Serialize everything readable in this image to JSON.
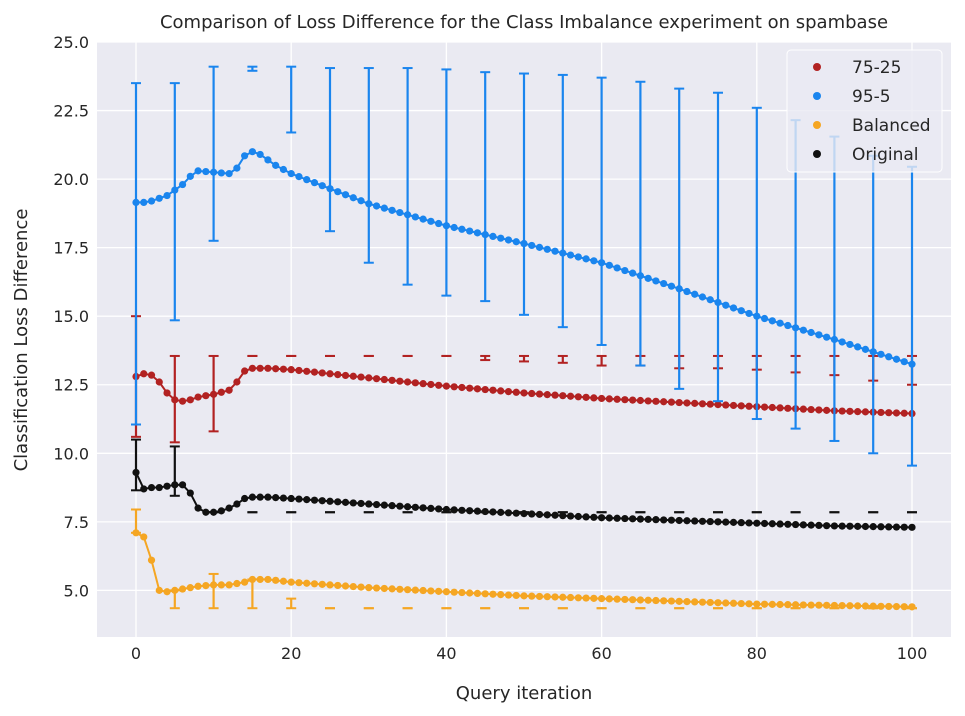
{
  "chart_data": {
    "type": "line",
    "title": "Comparison of Loss Difference for the Class Imbalance experiment on spambase",
    "xlabel": "Query iteration",
    "ylabel": "Classification Loss Difference",
    "xlim": [
      -5,
      105
    ],
    "ylim": [
      3.3,
      25.0
    ],
    "xticks": [
      0,
      20,
      40,
      60,
      80,
      100
    ],
    "xtick_labels": [
      "0",
      "20",
      "40",
      "60",
      "80",
      "100"
    ],
    "yticks": [
      5.0,
      7.5,
      10.0,
      12.5,
      15.0,
      17.5,
      20.0,
      22.5,
      25.0
    ],
    "ytick_labels": [
      "5.0",
      "7.5",
      "10.0",
      "12.5",
      "15.0",
      "17.5",
      "20.0",
      "22.5",
      "25.0"
    ],
    "grid": true,
    "legend_position": "top-right",
    "colors": {
      "background": "#eaeaf2",
      "grid": "#ffffff"
    },
    "series": [
      {
        "name": "75-25",
        "color": "#b22222",
        "key_points": [
          [
            0,
            12.8
          ],
          [
            1,
            12.9
          ],
          [
            2,
            12.85
          ],
          [
            3,
            12.6
          ],
          [
            4,
            12.2
          ],
          [
            5,
            11.95
          ],
          [
            6,
            11.9
          ],
          [
            7,
            11.95
          ],
          [
            8,
            12.05
          ],
          [
            10,
            12.15
          ],
          [
            12,
            12.3
          ],
          [
            13,
            12.6
          ],
          [
            14,
            13.0
          ],
          [
            15,
            13.1
          ],
          [
            17,
            13.1
          ],
          [
            20,
            13.05
          ],
          [
            30,
            12.75
          ],
          [
            40,
            12.45
          ],
          [
            50,
            12.2
          ],
          [
            60,
            12.0
          ],
          [
            70,
            11.85
          ],
          [
            80,
            11.7
          ],
          [
            90,
            11.55
          ],
          [
            100,
            11.45
          ]
        ],
        "error_bars": [
          {
            "x": 0,
            "low": 10.6,
            "high": 15.0
          },
          {
            "x": 5,
            "low": 10.4,
            "high": 13.55
          },
          {
            "x": 10,
            "low": 10.8,
            "high": 13.55
          },
          {
            "x": 15,
            "low": 13.55,
            "high": 13.55
          },
          {
            "x": 20,
            "low": 13.55,
            "high": 13.55
          },
          {
            "x": 25,
            "low": 13.55,
            "high": 13.55
          },
          {
            "x": 30,
            "low": 13.55,
            "high": 13.55
          },
          {
            "x": 35,
            "low": 13.55,
            "high": 13.55
          },
          {
            "x": 40,
            "low": 13.55,
            "high": 13.55
          },
          {
            "x": 45,
            "low": 13.4,
            "high": 13.55
          },
          {
            "x": 50,
            "low": 13.35,
            "high": 13.55
          },
          {
            "x": 55,
            "low": 13.3,
            "high": 13.55
          },
          {
            "x": 60,
            "low": 13.2,
            "high": 13.55
          },
          {
            "x": 65,
            "low": 13.2,
            "high": 13.55
          },
          {
            "x": 70,
            "low": 13.1,
            "high": 13.55
          },
          {
            "x": 75,
            "low": 13.1,
            "high": 13.55
          },
          {
            "x": 80,
            "low": 13.05,
            "high": 13.55
          },
          {
            "x": 85,
            "low": 12.95,
            "high": 13.55
          },
          {
            "x": 90,
            "low": 12.85,
            "high": 13.55
          },
          {
            "x": 95,
            "low": 12.65,
            "high": 13.55
          },
          {
            "x": 100,
            "low": 12.5,
            "high": 13.55
          }
        ]
      },
      {
        "name": "95-5",
        "color": "#1a85ee",
        "key_points": [
          [
            0,
            19.15
          ],
          [
            1,
            19.15
          ],
          [
            2,
            19.2
          ],
          [
            3,
            19.3
          ],
          [
            4,
            19.4
          ],
          [
            5,
            19.6
          ],
          [
            6,
            19.8
          ],
          [
            7,
            20.1
          ],
          [
            8,
            20.3
          ],
          [
            10,
            20.25
          ],
          [
            12,
            20.2
          ],
          [
            13,
            20.4
          ],
          [
            14,
            20.85
          ],
          [
            15,
            21.0
          ],
          [
            16,
            20.9
          ],
          [
            17,
            20.7
          ],
          [
            18,
            20.5
          ],
          [
            20,
            20.2
          ],
          [
            25,
            19.65
          ],
          [
            30,
            19.1
          ],
          [
            40,
            18.3
          ],
          [
            50,
            17.65
          ],
          [
            60,
            16.95
          ],
          [
            70,
            16.0
          ],
          [
            80,
            15.0
          ],
          [
            90,
            14.15
          ],
          [
            100,
            13.25
          ]
        ],
        "error_bars": [
          {
            "x": 0,
            "low": 11.05,
            "high": 23.5
          },
          {
            "x": 5,
            "low": 14.85,
            "high": 23.5
          },
          {
            "x": 10,
            "low": 17.75,
            "high": 24.1
          },
          {
            "x": 15,
            "low": 23.95,
            "high": 24.1
          },
          {
            "x": 20,
            "low": 21.7,
            "high": 24.1
          },
          {
            "x": 25,
            "low": 18.1,
            "high": 24.05
          },
          {
            "x": 30,
            "low": 16.95,
            "high": 24.05
          },
          {
            "x": 35,
            "low": 16.15,
            "high": 24.05
          },
          {
            "x": 40,
            "low": 15.75,
            "high": 24.0
          },
          {
            "x": 45,
            "low": 15.55,
            "high": 23.9
          },
          {
            "x": 50,
            "low": 15.05,
            "high": 23.85
          },
          {
            "x": 55,
            "low": 14.6,
            "high": 23.8
          },
          {
            "x": 60,
            "low": 13.95,
            "high": 23.7
          },
          {
            "x": 65,
            "low": 13.2,
            "high": 23.55
          },
          {
            "x": 70,
            "low": 12.35,
            "high": 23.3
          },
          {
            "x": 75,
            "low": 11.9,
            "high": 23.15
          },
          {
            "x": 80,
            "low": 11.25,
            "high": 22.6
          },
          {
            "x": 85,
            "low": 10.9,
            "high": 22.15
          },
          {
            "x": 90,
            "low": 10.45,
            "high": 21.55
          },
          {
            "x": 95,
            "low": 10.0,
            "high": 20.85
          },
          {
            "x": 100,
            "low": 9.55,
            "high": 20.45
          }
        ]
      },
      {
        "name": "Balanced",
        "color": "#f5a623",
        "key_points": [
          [
            0,
            7.1
          ],
          [
            1,
            6.95
          ],
          [
            2,
            6.1
          ],
          [
            3,
            5.0
          ],
          [
            4,
            4.95
          ],
          [
            5,
            5.0
          ],
          [
            6,
            5.05
          ],
          [
            7,
            5.1
          ],
          [
            8,
            5.15
          ],
          [
            10,
            5.2
          ],
          [
            12,
            5.2
          ],
          [
            13,
            5.25
          ],
          [
            14,
            5.3
          ],
          [
            15,
            5.4
          ],
          [
            17,
            5.4
          ],
          [
            20,
            5.3
          ],
          [
            30,
            5.1
          ],
          [
            40,
            4.95
          ],
          [
            50,
            4.8
          ],
          [
            60,
            4.7
          ],
          [
            70,
            4.6
          ],
          [
            80,
            4.5
          ],
          [
            90,
            4.45
          ],
          [
            100,
            4.4
          ]
        ],
        "error_bars": [
          {
            "x": 0,
            "low": 7.1,
            "high": 7.95
          },
          {
            "x": 5,
            "low": 4.35,
            "high": 5.0
          },
          {
            "x": 10,
            "low": 4.35,
            "high": 5.6
          },
          {
            "x": 15,
            "low": 4.35,
            "high": 5.4
          },
          {
            "x": 20,
            "low": 4.35,
            "high": 4.7
          },
          {
            "x": 25,
            "low": 4.35,
            "high": 4.35
          },
          {
            "x": 30,
            "low": 4.35,
            "high": 4.35
          },
          {
            "x": 35,
            "low": 4.35,
            "high": 4.35
          },
          {
            "x": 40,
            "low": 4.35,
            "high": 4.35
          },
          {
            "x": 45,
            "low": 4.35,
            "high": 4.35
          },
          {
            "x": 50,
            "low": 4.35,
            "high": 4.35
          },
          {
            "x": 55,
            "low": 4.35,
            "high": 4.35
          },
          {
            "x": 60,
            "low": 4.35,
            "high": 4.35
          },
          {
            "x": 65,
            "low": 4.35,
            "high": 4.35
          },
          {
            "x": 70,
            "low": 4.35,
            "high": 4.35
          },
          {
            "x": 75,
            "low": 4.35,
            "high": 4.35
          },
          {
            "x": 80,
            "low": 4.35,
            "high": 4.35
          },
          {
            "x": 85,
            "low": 4.35,
            "high": 4.35
          },
          {
            "x": 90,
            "low": 4.35,
            "high": 4.35
          },
          {
            "x": 95,
            "low": 4.35,
            "high": 4.35
          },
          {
            "x": 100,
            "low": 4.35,
            "high": 4.35
          }
        ]
      },
      {
        "name": "Original",
        "color": "#111111",
        "key_points": [
          [
            0,
            9.3
          ],
          [
            1,
            8.7
          ],
          [
            2,
            8.75
          ],
          [
            3,
            8.75
          ],
          [
            4,
            8.8
          ],
          [
            5,
            8.85
          ],
          [
            6,
            8.85
          ],
          [
            7,
            8.55
          ],
          [
            8,
            8.0
          ],
          [
            9,
            7.85
          ],
          [
            10,
            7.85
          ],
          [
            11,
            7.9
          ],
          [
            12,
            8.0
          ],
          [
            13,
            8.15
          ],
          [
            14,
            8.35
          ],
          [
            15,
            8.4
          ],
          [
            17,
            8.4
          ],
          [
            20,
            8.35
          ],
          [
            30,
            8.15
          ],
          [
            40,
            7.95
          ],
          [
            50,
            7.8
          ],
          [
            60,
            7.65
          ],
          [
            70,
            7.55
          ],
          [
            80,
            7.45
          ],
          [
            90,
            7.35
          ],
          [
            100,
            7.3
          ]
        ],
        "error_bars": [
          {
            "x": 0,
            "low": 8.65,
            "high": 10.5
          },
          {
            "x": 5,
            "low": 8.45,
            "high": 10.25
          },
          {
            "x": 10,
            "low": 7.85,
            "high": 7.85
          },
          {
            "x": 15,
            "low": 7.85,
            "high": 7.85
          },
          {
            "x": 20,
            "low": 7.85,
            "high": 7.85
          },
          {
            "x": 25,
            "low": 7.85,
            "high": 7.85
          },
          {
            "x": 30,
            "low": 7.85,
            "high": 7.85
          },
          {
            "x": 35,
            "low": 7.85,
            "high": 7.85
          },
          {
            "x": 40,
            "low": 7.85,
            "high": 7.85
          },
          {
            "x": 45,
            "low": 7.85,
            "high": 7.85
          },
          {
            "x": 50,
            "low": 7.85,
            "high": 7.85
          },
          {
            "x": 55,
            "low": 7.85,
            "high": 7.85
          },
          {
            "x": 60,
            "low": 7.85,
            "high": 7.85
          },
          {
            "x": 65,
            "low": 7.85,
            "high": 7.85
          },
          {
            "x": 70,
            "low": 7.85,
            "high": 7.85
          },
          {
            "x": 75,
            "low": 7.85,
            "high": 7.85
          },
          {
            "x": 80,
            "low": 7.85,
            "high": 7.85
          },
          {
            "x": 85,
            "low": 7.85,
            "high": 7.85
          },
          {
            "x": 90,
            "low": 7.85,
            "high": 7.85
          },
          {
            "x": 95,
            "low": 7.85,
            "high": 7.85
          },
          {
            "x": 100,
            "low": 7.85,
            "high": 7.85
          }
        ]
      }
    ]
  }
}
